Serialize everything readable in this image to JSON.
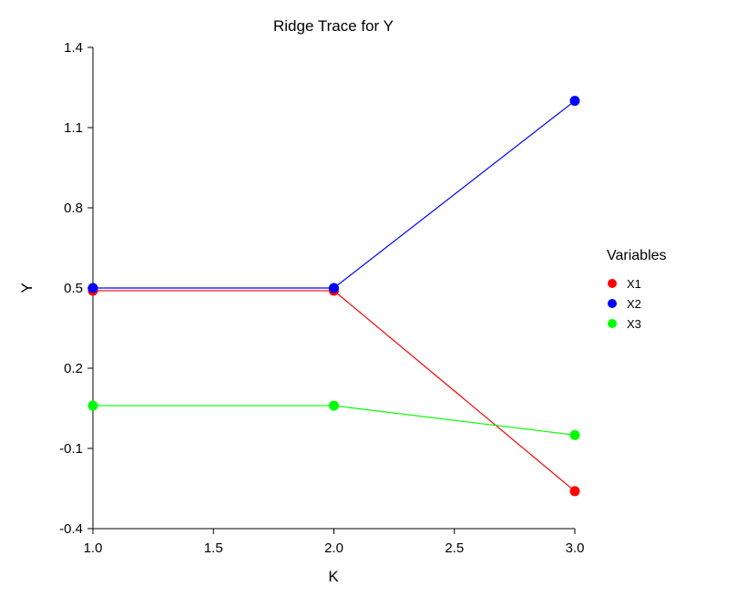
{
  "chart_data": {
    "type": "line",
    "title": "Ridge Trace for Y",
    "xlabel": "K",
    "ylabel": "Y",
    "x": [
      1.0,
      2.0,
      3.0
    ],
    "xlim": [
      1.0,
      3.0
    ],
    "ylim": [
      -0.4,
      1.4
    ],
    "xticks": [
      "1.0",
      "1.5",
      "2.0",
      "2.5",
      "3.0"
    ],
    "xtick_values": [
      1.0,
      1.5,
      2.0,
      2.5,
      3.0
    ],
    "yticks": [
      "-0.4",
      "-0.1",
      "0.2",
      "0.5",
      "0.8",
      "1.1",
      "1.4"
    ],
    "ytick_values": [
      -0.4,
      -0.1,
      0.2,
      0.5,
      0.8,
      1.1,
      1.4
    ],
    "grid": false,
    "legend": {
      "title": "Variables",
      "placement": "right"
    },
    "series": [
      {
        "name": "X1",
        "color": "#ff0000",
        "values": [
          0.49,
          0.49,
          -0.26
        ]
      },
      {
        "name": "X2",
        "color": "#0000ff",
        "values": [
          0.5,
          0.5,
          1.2
        ]
      },
      {
        "name": "X3",
        "color": "#00ff00",
        "values": [
          0.06,
          0.06,
          -0.05
        ]
      }
    ]
  }
}
